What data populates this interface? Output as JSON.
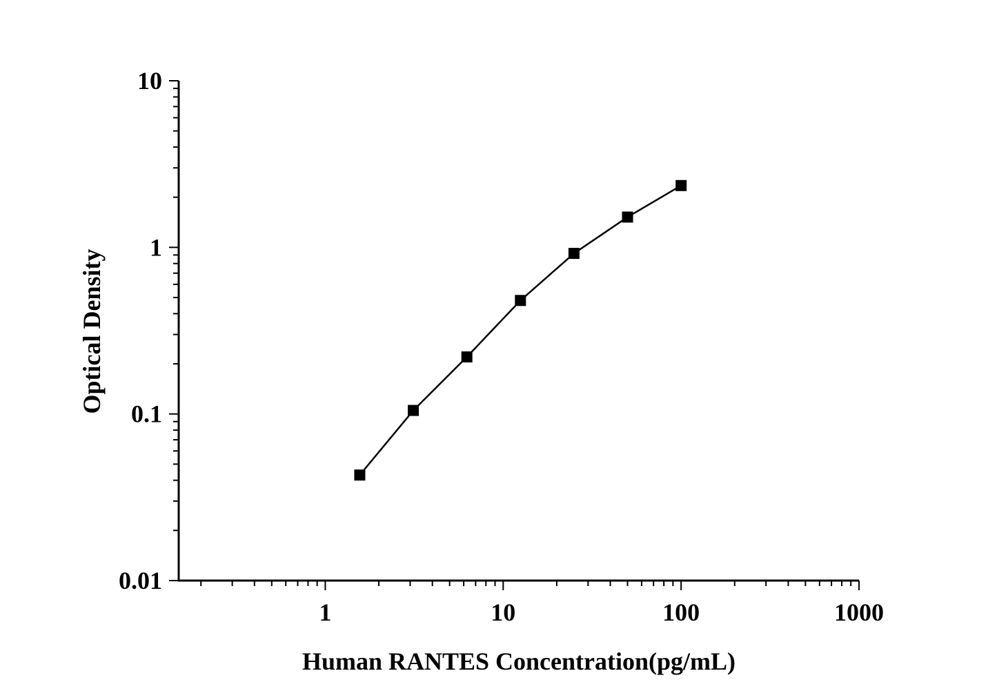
{
  "chart_data": {
    "type": "line",
    "title": "",
    "xlabel": "Human RANTES Concentration(pg/mL)",
    "ylabel": "Optical Density",
    "x_scale": "log",
    "y_scale": "log",
    "xlim": [
      0.15,
      1000
    ],
    "ylim": [
      0.01,
      10
    ],
    "x_ticks": [
      {
        "value": 1,
        "label": "1"
      },
      {
        "value": 10,
        "label": "10"
      },
      {
        "value": 100,
        "label": "100"
      },
      {
        "value": 1000,
        "label": "1000"
      }
    ],
    "y_ticks": [
      {
        "value": 0.01,
        "label": "0.01"
      },
      {
        "value": 0.1,
        "label": "0.1"
      },
      {
        "value": 1,
        "label": "1"
      },
      {
        "value": 10,
        "label": "10"
      }
    ],
    "grid": false,
    "legend": "none",
    "marker": "square",
    "color": "#000000",
    "series": [
      {
        "x": [
          1.5625,
          3.125,
          6.25,
          12.5,
          25,
          50,
          100
        ],
        "y": [
          0.043,
          0.105,
          0.22,
          0.48,
          0.92,
          1.52,
          2.35
        ]
      }
    ]
  }
}
